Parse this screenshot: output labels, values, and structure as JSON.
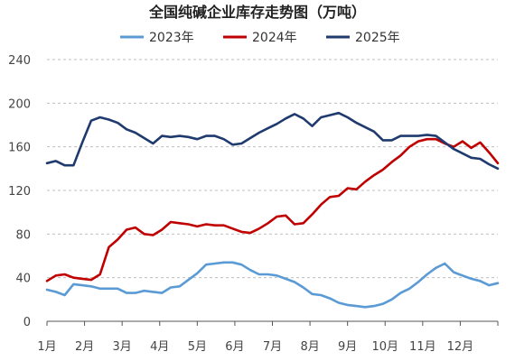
{
  "chart_data": {
    "type": "line",
    "title": "全国纯碱企业库存走势图（万吨）",
    "xlabel": "",
    "ylabel": "",
    "ylim": [
      0,
      240
    ],
    "yticks": [
      0,
      40,
      80,
      120,
      160,
      200,
      240
    ],
    "month_labels": [
      "1月",
      "2月",
      "3月",
      "4月",
      "5月",
      "6月",
      "7月",
      "8月",
      "9月",
      "10月",
      "11月",
      "12月"
    ],
    "grid": true,
    "legend_position": "top",
    "x_week_range": [
      1,
      52
    ],
    "series": [
      {
        "name": "2023年",
        "color": "#5b9bd5",
        "values": [
          29,
          27,
          24,
          34,
          33,
          32,
          30,
          30,
          30,
          26,
          26,
          28,
          27,
          26,
          31,
          32,
          38,
          44,
          52,
          53,
          54,
          54,
          52,
          47,
          43,
          43,
          42,
          39,
          36,
          31,
          25,
          24,
          21,
          17,
          15,
          14,
          13,
          14,
          16,
          20,
          26,
          30,
          36,
          43,
          49,
          53,
          45,
          42,
          39,
          37,
          33,
          35
        ]
      },
      {
        "name": "2024年",
        "color": "#c00000",
        "values": [
          37,
          42,
          43,
          40,
          39,
          38,
          43,
          68,
          75,
          84,
          86,
          80,
          79,
          84,
          91,
          90,
          89,
          87,
          89,
          88,
          88,
          85,
          82,
          81,
          85,
          90,
          96,
          97,
          89,
          90,
          98,
          107,
          114,
          115,
          122,
          121,
          128,
          134,
          139,
          146,
          152,
          160,
          165,
          167,
          167,
          163,
          160,
          165,
          159,
          164,
          155,
          145
        ]
      },
      {
        "name": "2025年",
        "color": "#1f3a6e",
        "values": [
          145,
          147,
          143,
          143,
          164,
          184,
          187,
          185,
          182,
          176,
          173,
          168,
          163,
          170,
          169,
          170,
          169,
          167,
          170,
          170,
          167,
          162,
          163,
          168,
          173,
          177,
          181,
          186,
          190,
          186,
          179,
          187,
          189,
          191,
          187,
          182,
          178,
          174,
          166,
          166,
          170,
          170,
          170,
          171,
          170,
          164,
          158,
          154,
          150,
          149,
          144,
          140
        ]
      }
    ]
  }
}
